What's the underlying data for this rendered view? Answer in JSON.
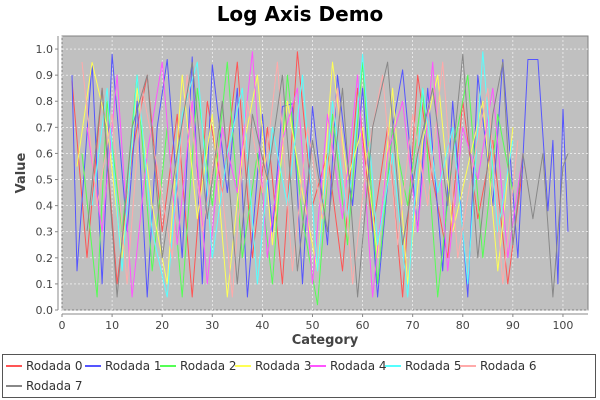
{
  "chart_data": {
    "type": "line",
    "title": "Log Axis Demo",
    "xlabel": "Category",
    "ylabel": "Value",
    "xlim": [
      0,
      105
    ],
    "ylim": [
      0,
      1.05
    ],
    "x_ticks": [
      "0",
      "10",
      "20",
      "30",
      "40",
      "50",
      "60",
      "70",
      "80",
      "90",
      "100"
    ],
    "y_ticks": [
      "0.0",
      "0.1",
      "0.2",
      "0.3",
      "0.4",
      "0.5",
      "0.6",
      "0.7",
      "0.8",
      "0.9",
      "1.0"
    ],
    "grid": true,
    "background": "#c0c0c0",
    "legend_position": "bottom",
    "series": [
      {
        "name": "Rodada 0",
        "color": "#ff5555",
        "x": [
          2,
          5,
          8,
          11,
          14,
          17,
          20,
          23,
          26,
          29,
          32,
          35,
          38,
          41,
          44,
          47,
          50,
          53,
          56,
          59,
          62,
          65,
          68,
          71,
          74,
          77,
          80,
          83,
          86,
          89,
          92
        ],
        "values": [
          0.88,
          0.2,
          0.85,
          0.1,
          0.6,
          0.9,
          0.3,
          0.75,
          0.05,
          0.8,
          0.45,
          0.95,
          0.2,
          0.7,
          0.1,
          0.99,
          0.4,
          0.6,
          0.15,
          0.85,
          0.3,
          0.7,
          0.05,
          0.9,
          0.5,
          0.2,
          0.8,
          0.35,
          0.65,
          0.1,
          0.55
        ]
      },
      {
        "name": "Rodada 1",
        "color": "#5555ff",
        "x": [
          2,
          3,
          6,
          8,
          10,
          13,
          15,
          17,
          19,
          21,
          24,
          26,
          28,
          30,
          33,
          35,
          37,
          40,
          42,
          44,
          46,
          48,
          50,
          53,
          55,
          58,
          60,
          63,
          66,
          68,
          71,
          73,
          76,
          78,
          81,
          83,
          86,
          88,
          91,
          93,
          95,
          97,
          98,
          99,
          100,
          101
        ],
        "values": [
          0.9,
          0.15,
          0.95,
          0.1,
          0.98,
          0.3,
          0.8,
          0.05,
          0.7,
          0.96,
          0.2,
          0.97,
          0.1,
          0.94,
          0.45,
          0.85,
          0.05,
          0.75,
          0.3,
          0.78,
          0.79,
          0.1,
          0.78,
          0.25,
          0.9,
          0.4,
          0.85,
          0.05,
          0.7,
          0.92,
          0.3,
          0.85,
          0.15,
          0.8,
          0.05,
          0.9,
          0.4,
          0.96,
          0.2,
          0.96,
          0.96,
          0.38,
          0.65,
          0.1,
          0.77,
          0.3
        ]
      },
      {
        "name": "Rodada 2",
        "color": "#55ff55",
        "x": [
          4,
          7,
          9,
          12,
          15,
          18,
          21,
          24,
          27,
          30,
          33,
          36,
          39,
          42,
          45,
          48,
          51,
          54,
          57,
          60,
          63,
          66,
          69,
          72,
          75,
          78,
          81,
          84,
          87,
          90
        ],
        "values": [
          0.6,
          0.05,
          0.8,
          0.3,
          0.9,
          0.15,
          0.7,
          0.05,
          0.85,
          0.4,
          0.95,
          0.2,
          0.6,
          0.1,
          0.9,
          0.35,
          0.02,
          0.75,
          0.25,
          0.95,
          0.1,
          0.7,
          0.4,
          0.85,
          0.05,
          0.6,
          0.9,
          0.2,
          0.75,
          0.45
        ]
      },
      {
        "name": "Rodada 3",
        "color": "#ffff55",
        "x": [
          3,
          6,
          9,
          12,
          15,
          18,
          21,
          24,
          27,
          30,
          33,
          36,
          39,
          42,
          45,
          48,
          51,
          54,
          57,
          60,
          63,
          66,
          69,
          72,
          75,
          78,
          81,
          84,
          87,
          90
        ],
        "values": [
          0.55,
          0.95,
          0.7,
          0.2,
          0.85,
          0.4,
          0.1,
          0.9,
          0.35,
          0.75,
          0.05,
          0.6,
          0.9,
          0.25,
          0.8,
          0.45,
          0.15,
          0.95,
          0.5,
          0.7,
          0.2,
          0.85,
          0.1,
          0.65,
          0.9,
          0.3,
          0.55,
          0.8,
          0.15,
          0.7
        ]
      },
      {
        "name": "Rodada 4",
        "color": "#ff55ff",
        "x": [
          5,
          8,
          11,
          14,
          17,
          20,
          23,
          26,
          29,
          32,
          35,
          38,
          41,
          44,
          47,
          50,
          53,
          56,
          59,
          62,
          65,
          68,
          71,
          74,
          77,
          80,
          83,
          86,
          89,
          92
        ],
        "values": [
          0.7,
          0.3,
          0.9,
          0.05,
          0.6,
          0.95,
          0.25,
          0.8,
          0.1,
          0.7,
          0.45,
          0.99,
          0.2,
          0.65,
          0.85,
          0.1,
          0.75,
          0.35,
          0.9,
          0.05,
          0.6,
          0.8,
          0.3,
          0.95,
          0.15,
          0.7,
          0.5,
          0.85,
          0.2,
          0.6
        ]
      },
      {
        "name": "Rodada 5",
        "color": "#55ffff",
        "x": [
          6,
          9,
          12,
          15,
          18,
          21,
          24,
          27,
          30,
          33,
          36,
          39,
          42,
          45,
          48,
          51,
          54,
          57,
          60,
          63,
          66,
          69,
          72,
          75,
          78,
          81,
          84,
          87,
          90
        ],
        "values": [
          0.4,
          0.85,
          0.15,
          0.9,
          0.3,
          0.05,
          0.75,
          0.95,
          0.2,
          0.6,
          0.85,
          0.1,
          0.7,
          0.4,
          0.9,
          0.15,
          0.8,
          0.35,
          0.98,
          0.25,
          0.6,
          0.05,
          0.85,
          0.45,
          0.7,
          0.1,
          0.99,
          0.3,
          0.65
        ]
      },
      {
        "name": "Rodada 6",
        "color": "#ffaaaa",
        "x": [
          4,
          7,
          10,
          13,
          16,
          19,
          22,
          25,
          28,
          31,
          34,
          37,
          40,
          43,
          46,
          49,
          52,
          55,
          58,
          61,
          64,
          67,
          70,
          73,
          76,
          79,
          82,
          85,
          88,
          91
        ],
        "values": [
          0.95,
          0.4,
          0.75,
          0.1,
          0.85,
          0.55,
          0.2,
          0.9,
          0.3,
          0.65,
          0.05,
          0.8,
          0.45,
          0.95,
          0.15,
          0.7,
          0.35,
          0.85,
          0.1,
          0.6,
          0.9,
          0.25,
          0.75,
          0.4,
          0.95,
          0.2,
          0.55,
          0.85,
          0.1,
          0.65
        ]
      },
      {
        "name": "Rodada 7",
        "color": "#888888",
        "x": [
          5,
          8,
          11,
          14,
          17,
          20,
          23,
          26,
          29,
          32,
          35,
          38,
          41,
          44,
          47,
          50,
          53,
          56,
          59,
          62,
          65,
          68,
          71,
          74,
          77,
          80,
          83,
          86,
          88,
          90,
          92,
          94,
          96,
          98,
          100,
          101
        ],
        "values": [
          0.3,
          0.85,
          0.05,
          0.7,
          0.9,
          0.2,
          0.6,
          0.95,
          0.35,
          0.8,
          0.1,
          0.75,
          0.5,
          0.9,
          0.15,
          0.65,
          0.3,
          0.85,
          0.05,
          0.7,
          0.95,
          0.25,
          0.6,
          0.85,
          0.4,
          0.98,
          0.2,
          0.75,
          0.95,
          0.25,
          0.6,
          0.35,
          0.6,
          0.05,
          0.55,
          0.6
        ]
      }
    ]
  }
}
